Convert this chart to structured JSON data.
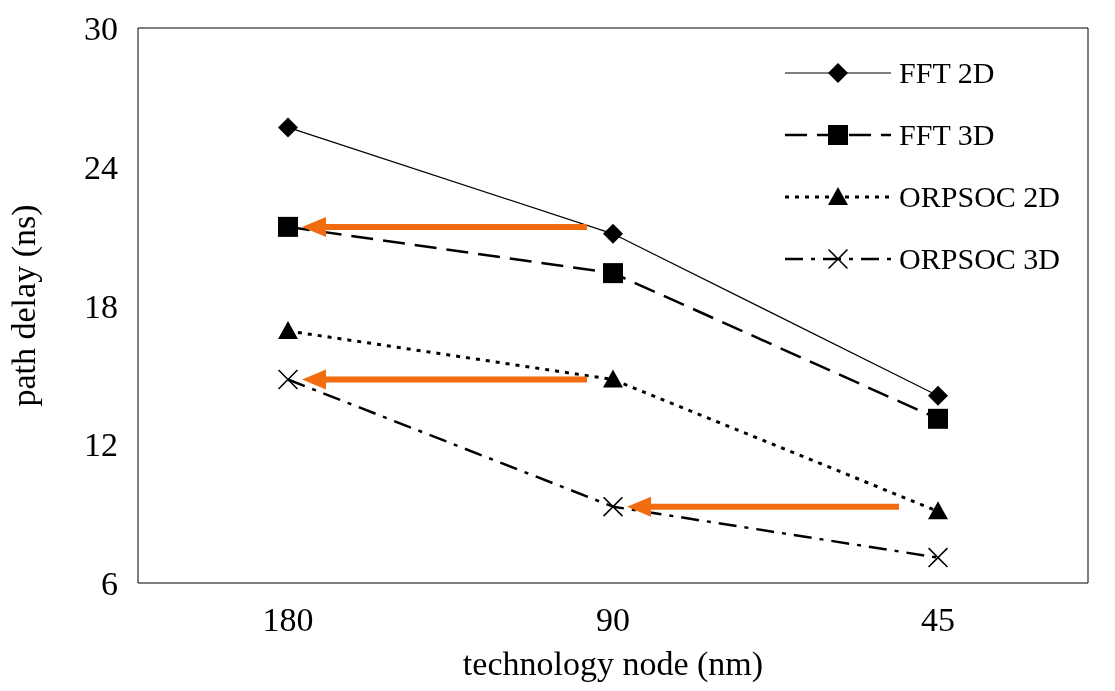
{
  "chart_data": {
    "type": "line",
    "xlabel": "technology node (nm)",
    "ylabel": "path delay (ns)",
    "categories": [
      "180",
      "90",
      "45"
    ],
    "ylim": [
      6,
      30
    ],
    "yticks": [
      6,
      12,
      18,
      24,
      30
    ],
    "grid": false,
    "legend": "top right",
    "series": [
      {
        "name": "FFT 2D",
        "color": "#000000",
        "values": [
          25.7,
          21.1,
          14.1
        ],
        "marker": "diamond",
        "line_style": "solid"
      },
      {
        "name": "FFT 3D",
        "color": "#000000",
        "values": [
          21.4,
          19.4,
          13.1
        ],
        "marker": "square",
        "line_style": "dashed"
      },
      {
        "name": "ORPSOC 2D",
        "color": "#000000",
        "values": [
          16.9,
          14.8,
          9.1
        ],
        "marker": "triangle",
        "line_style": "dotted"
      },
      {
        "name": "ORPSOC 3D",
        "color": "#000000",
        "values": [
          14.8,
          9.3,
          7.1
        ],
        "marker": "cross",
        "line_style": "dashdot"
      }
    ]
  }
}
